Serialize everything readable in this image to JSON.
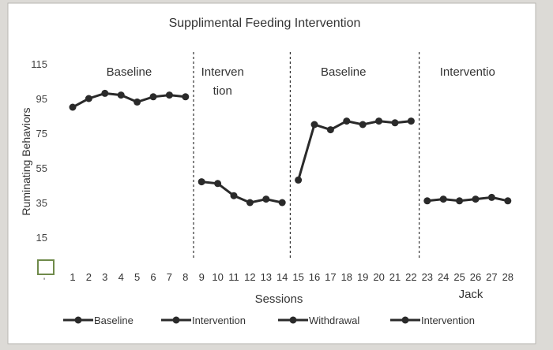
{
  "chart_data": {
    "type": "line",
    "title": "Supplimental Feeding Intervention",
    "xlabel": "Sessions",
    "ylabel": "Ruminating Behaviors",
    "subject_label": "Jack",
    "x_ticks": [
      1,
      2,
      3,
      4,
      5,
      6,
      7,
      8,
      9,
      10,
      11,
      12,
      13,
      14,
      15,
      16,
      17,
      18,
      19,
      20,
      21,
      22,
      23,
      24,
      25,
      26,
      27,
      28
    ],
    "y_ticks": [
      15,
      35,
      55,
      75,
      95,
      115
    ],
    "ylim": [
      5,
      115
    ],
    "xlim": [
      0.5,
      28.5
    ],
    "grid": false,
    "legend_position": "bottom",
    "phase_lines_after_session": [
      8,
      14,
      22
    ],
    "phase_labels": [
      {
        "text": "Baseline",
        "x": 4.5
      },
      {
        "text": "Interven",
        "x": 10.3
      },
      {
        "text": "tion",
        "x": 10.3
      },
      {
        "text": "Baseline",
        "x": 17.8
      },
      {
        "text": "Interventio",
        "x": 25.5
      }
    ],
    "series": [
      {
        "name": "Baseline",
        "x": [
          1,
          2,
          3,
          4,
          5,
          6,
          7,
          8
        ],
        "values": [
          90,
          95,
          98,
          97,
          93,
          96,
          97,
          96
        ]
      },
      {
        "name": "Intervention",
        "x": [
          9,
          10,
          11,
          12,
          13,
          14
        ],
        "values": [
          47,
          46,
          39,
          35,
          37,
          35
        ]
      },
      {
        "name": "Withdrawal",
        "x": [
          15,
          16,
          17,
          18,
          19,
          20,
          21,
          22
        ],
        "values": [
          48,
          80,
          77,
          82,
          80,
          82,
          81,
          82
        ]
      },
      {
        "name": "Intervention",
        "x": [
          23,
          24,
          25,
          26,
          27,
          28
        ],
        "values": [
          36,
          37,
          36,
          37,
          38,
          36
        ]
      }
    ]
  },
  "stray": {
    "tick_mark": "'",
    "checkbox_icon": "empty-checkbox-icon"
  },
  "colors": {
    "line": "#2a2a2a",
    "plot_background": "#ffffff",
    "background": "#dcdad6",
    "checkbox": "#6f8a4a"
  }
}
